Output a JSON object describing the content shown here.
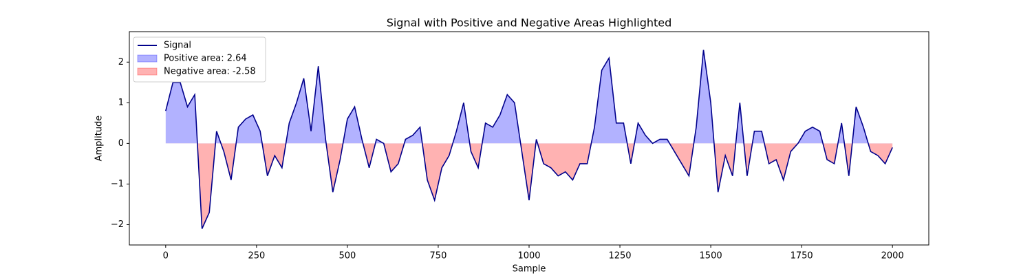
{
  "chart_data": {
    "type": "line",
    "title": "Signal with Positive and Negative Areas Highlighted",
    "xlabel": "Sample",
    "ylabel": "Amplitude",
    "x": [
      0,
      20,
      40,
      60,
      80,
      100,
      120,
      140,
      160,
      180,
      200,
      220,
      240,
      260,
      280,
      300,
      320,
      340,
      360,
      380,
      400,
      420,
      440,
      460,
      480,
      500,
      520,
      540,
      560,
      580,
      600,
      620,
      640,
      660,
      680,
      700,
      720,
      740,
      760,
      780,
      800,
      820,
      840,
      860,
      880,
      900,
      920,
      940,
      960,
      980,
      1000,
      1020,
      1040,
      1060,
      1080,
      1100,
      1120,
      1140,
      1160,
      1180,
      1200,
      1220,
      1240,
      1260,
      1280,
      1300,
      1320,
      1340,
      1360,
      1380,
      1400,
      1420,
      1440,
      1460,
      1480,
      1500,
      1520,
      1540,
      1560,
      1580,
      1600,
      1620,
      1640,
      1660,
      1680,
      1700,
      1720,
      1740,
      1760,
      1780,
      1800,
      1820,
      1840,
      1860,
      1880,
      1900,
      1920,
      1940,
      1960,
      1980,
      2000
    ],
    "series": [
      {
        "name": "Signal",
        "color": "#00008b",
        "values": [
          0.8,
          1.5,
          1.5,
          0.9,
          1.2,
          -2.1,
          -1.7,
          0.3,
          -0.2,
          -0.9,
          0.4,
          0.6,
          0.7,
          0.3,
          -0.8,
          -0.3,
          -0.6,
          0.5,
          1.0,
          1.6,
          0.3,
          1.9,
          0.1,
          -1.2,
          -0.4,
          0.6,
          0.9,
          0.1,
          -0.6,
          0.1,
          0.0,
          -0.7,
          -0.5,
          0.1,
          0.2,
          0.4,
          -0.9,
          -1.4,
          -0.6,
          -0.3,
          0.3,
          1.0,
          -0.2,
          -0.6,
          0.5,
          0.4,
          0.7,
          1.2,
          1.0,
          -0.2,
          -1.4,
          0.1,
          -0.5,
          -0.6,
          -0.8,
          -0.7,
          -0.9,
          -0.5,
          -0.5,
          0.4,
          1.8,
          2.1,
          0.5,
          0.5,
          -0.5,
          0.5,
          0.2,
          0.0,
          0.1,
          0.1,
          -0.2,
          -0.5,
          -0.8,
          0.4,
          2.3,
          1.0,
          -1.2,
          -0.3,
          -0.8,
          1.0,
          -0.8,
          0.3,
          0.3,
          -0.5,
          -0.4,
          -0.9,
          -0.2,
          0.0,
          0.3,
          0.4,
          0.3,
          -0.4,
          -0.5,
          0.5,
          -0.8,
          0.9,
          0.4,
          -0.2,
          -0.3,
          -0.5,
          -0.1
        ]
      }
    ],
    "fills": [
      {
        "name": "Positive area: 2.64",
        "color": "#0000ff",
        "side": "positive"
      },
      {
        "name": "Negative area: -2.58",
        "color": "#ff0000",
        "side": "negative"
      }
    ],
    "xlim": [
      -100,
      2100
    ],
    "ylim": [
      -2.5,
      2.75
    ],
    "xticks": [
      0,
      250,
      500,
      750,
      1000,
      1250,
      1500,
      1750,
      2000
    ],
    "yticks": [
      {
        "value": -2,
        "label": "−2"
      },
      {
        "value": -1,
        "label": "−1"
      },
      0,
      1,
      2
    ],
    "legend": "upper left",
    "grid": false
  }
}
